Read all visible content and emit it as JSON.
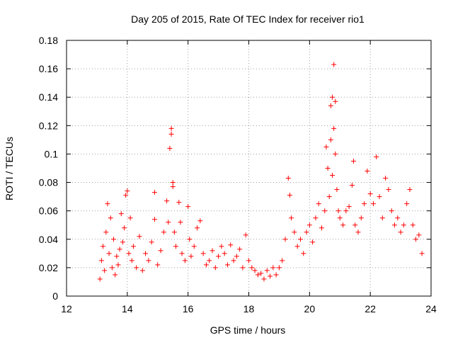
{
  "chart_data": {
    "type": "scatter",
    "title": "Day 205 of 2015, Rate Of TEC Index for receiver rio1",
    "xlabel": "GPS time / hours",
    "ylabel": "ROTI / TECUs",
    "xlim": [
      12,
      24
    ],
    "ylim": [
      0,
      0.18
    ],
    "xticks": [
      12,
      14,
      16,
      18,
      20,
      22,
      24
    ],
    "yticks": [
      0,
      0.02,
      0.04,
      0.06,
      0.08,
      0.1,
      0.12,
      0.14,
      0.16,
      0.18
    ],
    "xtick_labels": [
      "12",
      "14",
      "16",
      "18",
      "20",
      "22",
      "24"
    ],
    "ytick_labels": [
      "0",
      "0.02",
      "0.04",
      "0.06",
      "0.08",
      "0.1",
      "0.12",
      "0.14",
      "0.16",
      "0.18"
    ],
    "grid": true,
    "marker": "+",
    "color": "#ff0000",
    "series": [
      {
        "name": "rio1",
        "points": [
          [
            13.1,
            0.012
          ],
          [
            13.15,
            0.025
          ],
          [
            13.2,
            0.035
          ],
          [
            13.25,
            0.018
          ],
          [
            13.3,
            0.045
          ],
          [
            13.35,
            0.065
          ],
          [
            13.4,
            0.03
          ],
          [
            13.45,
            0.055
          ],
          [
            13.5,
            0.02
          ],
          [
            13.55,
            0.04
          ],
          [
            13.6,
            0.015
          ],
          [
            13.65,
            0.028
          ],
          [
            13.7,
            0.022
          ],
          [
            13.75,
            0.033
          ],
          [
            13.8,
            0.058
          ],
          [
            13.85,
            0.038
          ],
          [
            13.9,
            0.048
          ],
          [
            13.95,
            0.071
          ],
          [
            14.0,
            0.074
          ],
          [
            14.05,
            0.03
          ],
          [
            14.1,
            0.055
          ],
          [
            14.15,
            0.025
          ],
          [
            14.2,
            0.035
          ],
          [
            14.3,
            0.02
          ],
          [
            14.4,
            0.042
          ],
          [
            14.5,
            0.018
          ],
          [
            14.6,
            0.03
          ],
          [
            14.7,
            0.025
          ],
          [
            14.8,
            0.038
          ],
          [
            14.9,
            0.073
          ],
          [
            14.9,
            0.054
          ],
          [
            15.0,
            0.022
          ],
          [
            15.1,
            0.032
          ],
          [
            15.2,
            0.045
          ],
          [
            15.3,
            0.067
          ],
          [
            15.35,
            0.052
          ],
          [
            15.4,
            0.104
          ],
          [
            15.45,
            0.118
          ],
          [
            15.45,
            0.114
          ],
          [
            15.5,
            0.08
          ],
          [
            15.5,
            0.077
          ],
          [
            15.55,
            0.045
          ],
          [
            15.6,
            0.035
          ],
          [
            15.7,
            0.066
          ],
          [
            15.75,
            0.052
          ],
          [
            15.8,
            0.03
          ],
          [
            15.9,
            0.025
          ],
          [
            16.0,
            0.063
          ],
          [
            16.05,
            0.04
          ],
          [
            16.1,
            0.028
          ],
          [
            16.2,
            0.035
          ],
          [
            16.3,
            0.048
          ],
          [
            16.4,
            0.053
          ],
          [
            16.5,
            0.03
          ],
          [
            16.6,
            0.022
          ],
          [
            16.7,
            0.025
          ],
          [
            16.8,
            0.032
          ],
          [
            16.9,
            0.02
          ],
          [
            17.0,
            0.028
          ],
          [
            17.1,
            0.035
          ],
          [
            17.2,
            0.03
          ],
          [
            17.3,
            0.022
          ],
          [
            17.4,
            0.036
          ],
          [
            17.5,
            0.025
          ],
          [
            17.6,
            0.028
          ],
          [
            17.7,
            0.033
          ],
          [
            17.8,
            0.02
          ],
          [
            17.9,
            0.043
          ],
          [
            18.0,
            0.025
          ],
          [
            18.1,
            0.02
          ],
          [
            18.2,
            0.018
          ],
          [
            18.3,
            0.015
          ],
          [
            18.4,
            0.016
          ],
          [
            18.5,
            0.012
          ],
          [
            18.6,
            0.018
          ],
          [
            18.7,
            0.014
          ],
          [
            18.8,
            0.02
          ],
          [
            18.9,
            0.015
          ],
          [
            19.0,
            0.02
          ],
          [
            19.1,
            0.025
          ],
          [
            19.2,
            0.04
          ],
          [
            19.3,
            0.083
          ],
          [
            19.35,
            0.071
          ],
          [
            19.4,
            0.055
          ],
          [
            19.5,
            0.045
          ],
          [
            19.6,
            0.035
          ],
          [
            19.7,
            0.04
          ],
          [
            19.8,
            0.03
          ],
          [
            19.9,
            0.045
          ],
          [
            20.0,
            0.05
          ],
          [
            20.1,
            0.038
          ],
          [
            20.2,
            0.055
          ],
          [
            20.3,
            0.065
          ],
          [
            20.4,
            0.048
          ],
          [
            20.5,
            0.06
          ],
          [
            20.55,
            0.105
          ],
          [
            20.6,
            0.09
          ],
          [
            20.65,
            0.07
          ],
          [
            20.7,
            0.11
          ],
          [
            20.75,
            0.085
          ],
          [
            20.7,
            0.134
          ],
          [
            20.75,
            0.14
          ],
          [
            20.8,
            0.118
          ],
          [
            20.8,
            0.163
          ],
          [
            20.85,
            0.137
          ],
          [
            20.85,
            0.1
          ],
          [
            20.9,
            0.075
          ],
          [
            20.95,
            0.06
          ],
          [
            21.0,
            0.055
          ],
          [
            21.1,
            0.05
          ],
          [
            21.2,
            0.06
          ],
          [
            21.3,
            0.063
          ],
          [
            21.4,
            0.078
          ],
          [
            21.45,
            0.095
          ],
          [
            21.5,
            0.05
          ],
          [
            21.6,
            0.045
          ],
          [
            21.7,
            0.055
          ],
          [
            21.8,
            0.065
          ],
          [
            21.9,
            0.088
          ],
          [
            22.0,
            0.072
          ],
          [
            22.1,
            0.065
          ],
          [
            22.2,
            0.098
          ],
          [
            22.3,
            0.07
          ],
          [
            22.4,
            0.055
          ],
          [
            22.5,
            0.083
          ],
          [
            22.6,
            0.075
          ],
          [
            22.7,
            0.06
          ],
          [
            22.8,
            0.05
          ],
          [
            22.9,
            0.055
          ],
          [
            23.0,
            0.045
          ],
          [
            23.1,
            0.05
          ],
          [
            23.2,
            0.065
          ],
          [
            23.3,
            0.075
          ],
          [
            23.4,
            0.05
          ],
          [
            23.5,
            0.04
          ],
          [
            23.6,
            0.043
          ],
          [
            23.7,
            0.03
          ]
        ]
      }
    ]
  }
}
